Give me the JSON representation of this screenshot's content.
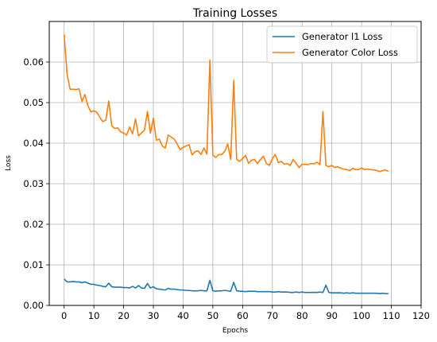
{
  "chart_data": {
    "type": "line",
    "title": "Training Losses",
    "xlabel": "Epochs",
    "ylabel": "Loss",
    "xlim": [
      -5,
      120
    ],
    "ylim": [
      0,
      0.07
    ],
    "xticks": [
      0,
      10,
      20,
      30,
      40,
      50,
      60,
      70,
      80,
      90,
      100,
      110,
      120
    ],
    "yticks": [
      0.0,
      0.01,
      0.02,
      0.03,
      0.04,
      0.05,
      0.06
    ],
    "ytick_labels": [
      "0.00",
      "0.01",
      "0.02",
      "0.03",
      "0.04",
      "0.05",
      "0.06"
    ],
    "grid": true,
    "legend_position": "top-right",
    "series": [
      {
        "name": "Generator l1 Loss",
        "color": "#1f77b4",
        "x": [
          0,
          1,
          2,
          3,
          4,
          5,
          6,
          7,
          8,
          9,
          10,
          11,
          12,
          13,
          14,
          15,
          16,
          17,
          18,
          19,
          20,
          21,
          22,
          23,
          24,
          25,
          26,
          27,
          28,
          29,
          30,
          31,
          32,
          33,
          34,
          35,
          36,
          37,
          38,
          39,
          40,
          41,
          42,
          43,
          44,
          45,
          46,
          47,
          48,
          49,
          50,
          51,
          52,
          53,
          54,
          55,
          56,
          57,
          58,
          59,
          60,
          61,
          62,
          63,
          64,
          65,
          66,
          67,
          68,
          69,
          70,
          71,
          72,
          73,
          74,
          75,
          76,
          77,
          78,
          79,
          80,
          81,
          82,
          83,
          84,
          85,
          86,
          87,
          88,
          89,
          90,
          91,
          92,
          93,
          94,
          95,
          96,
          97,
          98,
          99,
          100,
          101,
          102,
          103,
          104,
          105,
          106,
          107,
          108,
          109
        ],
        "values": [
          0.0065,
          0.0058,
          0.0058,
          0.0059,
          0.0058,
          0.0058,
          0.0056,
          0.0058,
          0.0055,
          0.0052,
          0.0052,
          0.005,
          0.0049,
          0.0047,
          0.0046,
          0.0055,
          0.0046,
          0.0045,
          0.0045,
          0.0045,
          0.0044,
          0.0044,
          0.0043,
          0.0047,
          0.0043,
          0.0049,
          0.0043,
          0.0042,
          0.0054,
          0.0043,
          0.0046,
          0.0041,
          0.004,
          0.0039,
          0.0038,
          0.0042,
          0.004,
          0.004,
          0.0039,
          0.0038,
          0.0038,
          0.0037,
          0.0037,
          0.0036,
          0.0036,
          0.0036,
          0.0037,
          0.0036,
          0.0036,
          0.0062,
          0.0036,
          0.0035,
          0.0036,
          0.0036,
          0.0037,
          0.0036,
          0.0035,
          0.0057,
          0.0036,
          0.0035,
          0.0035,
          0.0034,
          0.0035,
          0.0035,
          0.0035,
          0.0034,
          0.0034,
          0.0034,
          0.0034,
          0.0034,
          0.0033,
          0.0033,
          0.0034,
          0.0033,
          0.0033,
          0.0033,
          0.0032,
          0.0032,
          0.0033,
          0.0032,
          0.0033,
          0.0032,
          0.0032,
          0.0032,
          0.0032,
          0.0032,
          0.0033,
          0.0032,
          0.005,
          0.0032,
          0.0031,
          0.0031,
          0.0031,
          0.0031,
          0.003,
          0.0031,
          0.003,
          0.0031,
          0.003,
          0.003,
          0.003,
          0.003,
          0.003,
          0.003,
          0.003,
          0.003,
          0.0029,
          0.003,
          0.0029,
          0.0029
        ]
      },
      {
        "name": "Generator Color Loss",
        "color": "#ff7f0e",
        "x": [
          0,
          1,
          2,
          3,
          4,
          5,
          6,
          7,
          8,
          9,
          10,
          11,
          12,
          13,
          14,
          15,
          16,
          17,
          18,
          19,
          20,
          21,
          22,
          23,
          24,
          25,
          26,
          27,
          28,
          29,
          30,
          31,
          32,
          33,
          34,
          35,
          36,
          37,
          38,
          39,
          40,
          41,
          42,
          43,
          44,
          45,
          46,
          47,
          48,
          49,
          50,
          51,
          52,
          53,
          54,
          55,
          56,
          57,
          58,
          59,
          60,
          61,
          62,
          63,
          64,
          65,
          66,
          67,
          68,
          69,
          70,
          71,
          72,
          73,
          74,
          75,
          76,
          77,
          78,
          79,
          80,
          81,
          82,
          83,
          84,
          85,
          86,
          87,
          88,
          89,
          90,
          91,
          92,
          93,
          94,
          95,
          96,
          97,
          98,
          99,
          100,
          101,
          102,
          103,
          104,
          105,
          106,
          107,
          108,
          109
        ],
        "values": [
          0.0668,
          0.057,
          0.0533,
          0.0533,
          0.0532,
          0.0534,
          0.0503,
          0.052,
          0.0492,
          0.0477,
          0.048,
          0.0476,
          0.0464,
          0.0453,
          0.0457,
          0.0504,
          0.0443,
          0.0436,
          0.0438,
          0.0428,
          0.0425,
          0.042,
          0.044,
          0.0423,
          0.046,
          0.0418,
          0.0425,
          0.0432,
          0.0478,
          0.0425,
          0.0462,
          0.0407,
          0.041,
          0.0393,
          0.0388,
          0.042,
          0.0415,
          0.041,
          0.0398,
          0.0384,
          0.039,
          0.0393,
          0.0396,
          0.0371,
          0.0379,
          0.0381,
          0.0372,
          0.0388,
          0.0373,
          0.0605,
          0.037,
          0.0365,
          0.0372,
          0.0372,
          0.038,
          0.0398,
          0.036,
          0.0555,
          0.036,
          0.0355,
          0.0362,
          0.037,
          0.035,
          0.0358,
          0.036,
          0.035,
          0.036,
          0.0368,
          0.035,
          0.0345,
          0.0362,
          0.0372,
          0.0352,
          0.0355,
          0.0348,
          0.035,
          0.0345,
          0.036,
          0.035,
          0.034,
          0.0348,
          0.0348,
          0.0347,
          0.035,
          0.0349,
          0.0353,
          0.0347,
          0.0478,
          0.0345,
          0.0342,
          0.0345,
          0.034,
          0.0342,
          0.0338,
          0.0336,
          0.0335,
          0.0332,
          0.0338,
          0.0335,
          0.0335,
          0.0339,
          0.0335,
          0.0336,
          0.0335,
          0.0334,
          0.0333,
          0.033,
          0.0332,
          0.0334,
          0.033
        ]
      }
    ]
  }
}
